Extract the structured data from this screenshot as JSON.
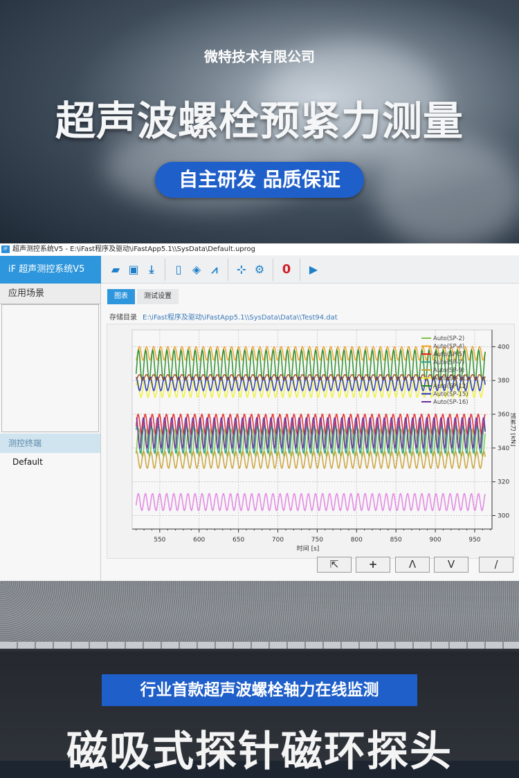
{
  "hero": {
    "company": "微特技术有限公司",
    "title": "超声波螺栓预紧力测量",
    "tagline": "自主研发 品质保证"
  },
  "app": {
    "window_title": "超声测控系统V5  -  E:\\iFast程序及驱动\\iFastApp5.1\\\\SysData\\Default.uprog",
    "app_icon": "iF",
    "brand": "iF   超声测控系统V5",
    "toolbar": [
      {
        "icon": "folder-open-icon"
      },
      {
        "icon": "save-icon"
      },
      {
        "icon": "download-icon"
      },
      {
        "icon": "clipboard-icon"
      },
      {
        "icon": "diamond-move-icon"
      },
      {
        "icon": "waveform-icon"
      },
      {
        "icon": "axis-icon"
      },
      {
        "icon": "gear-icon"
      },
      {
        "icon": "zero-icon",
        "label": "0",
        "color": "#d0202a"
      },
      {
        "icon": "play-icon"
      }
    ],
    "sidebar": {
      "header": "应用场景",
      "section": "测控终端",
      "items": [
        "Default"
      ]
    },
    "tabs": [
      {
        "label": "图表",
        "active": true
      },
      {
        "label": "测试设置",
        "active": false
      }
    ],
    "path_label": "存储目录",
    "path_value": "E:\\iFast程序及驱动\\iFastApp5.1\\\\SysData\\Data\\\\Test94.dat",
    "buttons": [
      {
        "icon": "pointer-icon",
        "glyph": "⇱"
      },
      {
        "icon": "plus-icon",
        "glyph": "+"
      },
      {
        "icon": "peak-up-icon",
        "glyph": "Λ"
      },
      {
        "icon": "peak-down-icon",
        "glyph": "V"
      },
      {
        "icon": "line-icon",
        "glyph": "/"
      }
    ]
  },
  "chart_data": {
    "type": "line",
    "xlabel": "时间 [s]",
    "ylabel": "预紧力 [kN]",
    "xlim": [
      515,
      972
    ],
    "ylim": [
      292,
      410
    ],
    "xticks": [
      550,
      600,
      650,
      700,
      750,
      800,
      850,
      900,
      950
    ],
    "yticks": [
      300,
      320,
      340,
      360,
      380,
      400
    ],
    "grid": true,
    "legend_position": "top-right",
    "period": 9,
    "series": [
      {
        "name": "Auto(SP-2)",
        "color": "#7cc242",
        "center": 343,
        "amp": 8,
        "phase": 0.5
      },
      {
        "name": "Auto(SP-4)",
        "color": "#f0a020",
        "center": 396,
        "amp": 4,
        "phase": 0
      },
      {
        "name": "Auto(SP-5)",
        "color": "#e82020",
        "center": 354,
        "amp": 6,
        "phase": 1.2
      },
      {
        "name": "Auto(SP-7)",
        "color": "#2a9a8a",
        "center": 345,
        "amp": 8,
        "phase": 2.2
      },
      {
        "name": "Auto(SP-9)",
        "color": "#c8a030",
        "center": 333,
        "amp": 5,
        "phase": 2.5
      },
      {
        "name": "Auto(SP-11)",
        "color": "#f0f030",
        "center": 375,
        "amp": 5,
        "phase": 1.8
      },
      {
        "name": "Auto(SP-12)",
        "color": "#1f8a1f",
        "center": 389,
        "amp": 9,
        "phase": 0.8
      },
      {
        "name": "Auto(SP-15)",
        "color": "#2030c0",
        "center": 378,
        "amp": 4,
        "phase": 3
      },
      {
        "name": "Auto(SP-16)",
        "color": "#6a2a9a",
        "center": 349,
        "amp": 9,
        "phase": 2.8
      },
      {
        "name": "",
        "color": "#a04a10",
        "center": 382,
        "amp": 1.5,
        "phase": 0
      },
      {
        "name": "",
        "color": "#e080e0",
        "center": 308,
        "amp": 5,
        "phase": 1
      }
    ]
  },
  "bottom": {
    "label": "行业首款超声波螺栓轴力在线监测",
    "title": "磁吸式探针磁环探头"
  }
}
